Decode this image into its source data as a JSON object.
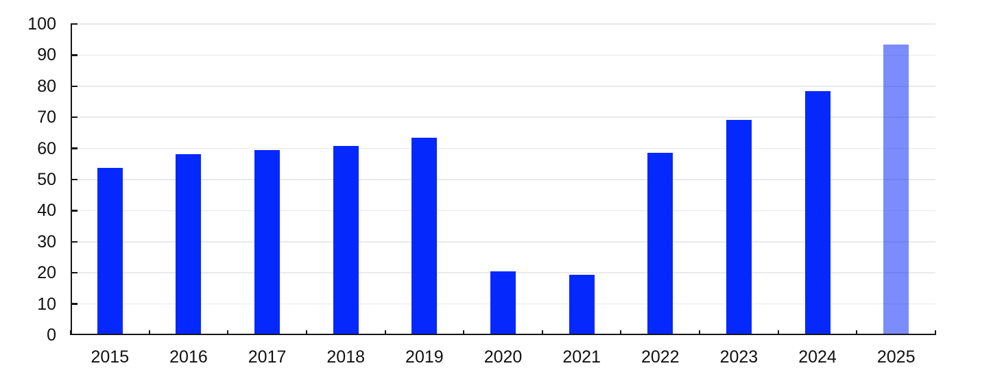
{
  "chart_data": {
    "type": "bar",
    "title": "",
    "xlabel": "",
    "ylabel": "",
    "categories": [
      "2015",
      "2016",
      "2017",
      "2018",
      "2019",
      "2020",
      "2021",
      "2022",
      "2023",
      "2024",
      "2025"
    ],
    "values": [
      53.8,
      58.2,
      59.4,
      60.8,
      63.5,
      20.5,
      19.4,
      58.7,
      69.2,
      78.5,
      93.3
    ],
    "ylim": [
      0,
      100
    ],
    "ytick_step": 10,
    "ytick_labels": [
      "0",
      "10",
      "20",
      "30",
      "40",
      "50",
      "60",
      "70",
      "80",
      "90",
      "100"
    ],
    "grid": true,
    "legend_position": "none",
    "bar_color": "#0528fc",
    "highlight_category": "2025",
    "highlight_visible_color": "#7d8ffc"
  },
  "colors": {
    "background": "#ffffff",
    "gridline": "#e9e9e9",
    "axis": "#161616",
    "tick": "#161616",
    "text": "#111111"
  }
}
